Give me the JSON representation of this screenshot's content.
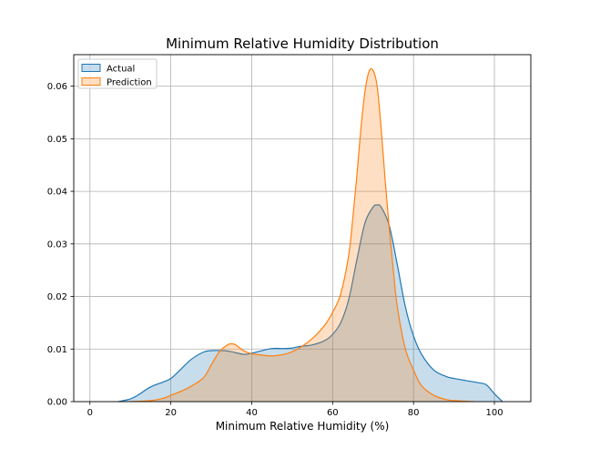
{
  "chart_data": {
    "type": "area",
    "title": "Minimum Relative Humidity Distribution",
    "xlabel": "Minimum Relative Humidity (%)",
    "ylabel": "",
    "xlim": [
      -4,
      109
    ],
    "ylim": [
      0,
      0.066
    ],
    "xticks": [
      0,
      20,
      40,
      60,
      80,
      100
    ],
    "yticks": [
      0.0,
      0.01,
      0.02,
      0.03,
      0.04,
      0.05,
      0.06
    ],
    "ytick_labels": [
      "0.00",
      "0.01",
      "0.02",
      "0.03",
      "0.04",
      "0.05",
      "0.06"
    ],
    "grid": true,
    "legend_position": "top-left",
    "series": [
      {
        "name": "Actual",
        "color": "#1f77b4",
        "fill_opacity": 0.25,
        "x": [
          7,
          10,
          12,
          15,
          18,
          20,
          22,
          25,
          28,
          30,
          33,
          35,
          38,
          40,
          42,
          45,
          48,
          50,
          52,
          55,
          58,
          60,
          62,
          64,
          66,
          68,
          70,
          71,
          72,
          74,
          76,
          78,
          80,
          82,
          85,
          88,
          90,
          93,
          96,
          98,
          100,
          102
        ],
        "y": [
          0.0,
          0.0005,
          0.0013,
          0.0028,
          0.0037,
          0.0044,
          0.0058,
          0.008,
          0.0094,
          0.0097,
          0.0097,
          0.0095,
          0.009,
          0.0092,
          0.0096,
          0.0101,
          0.0101,
          0.0102,
          0.0105,
          0.0108,
          0.0116,
          0.0128,
          0.015,
          0.0195,
          0.027,
          0.034,
          0.037,
          0.0374,
          0.037,
          0.0335,
          0.026,
          0.018,
          0.0125,
          0.009,
          0.006,
          0.0048,
          0.0044,
          0.004,
          0.0036,
          0.0032,
          0.0015,
          0.0
        ]
      },
      {
        "name": "Prediction",
        "color": "#ff7f0e",
        "fill_opacity": 0.25,
        "x": [
          10,
          15,
          18,
          20,
          24,
          28,
          30,
          32,
          34,
          35,
          36,
          38,
          40,
          42,
          45,
          48,
          50,
          52,
          55,
          58,
          60,
          62,
          64,
          65,
          66,
          67,
          68,
          69,
          70,
          71,
          72,
          73,
          74,
          75,
          76,
          78,
          80,
          82,
          85,
          88,
          90,
          95
        ],
        "y": [
          0.0,
          0.0002,
          0.0006,
          0.0012,
          0.0025,
          0.0045,
          0.007,
          0.0095,
          0.0108,
          0.011,
          0.0108,
          0.0097,
          0.0091,
          0.0089,
          0.0087,
          0.009,
          0.0095,
          0.0103,
          0.012,
          0.0145,
          0.017,
          0.0205,
          0.028,
          0.035,
          0.043,
          0.052,
          0.059,
          0.0628,
          0.063,
          0.06,
          0.052,
          0.042,
          0.033,
          0.025,
          0.018,
          0.01,
          0.006,
          0.003,
          0.0012,
          0.0004,
          0.0002,
          0.0
        ]
      }
    ]
  }
}
